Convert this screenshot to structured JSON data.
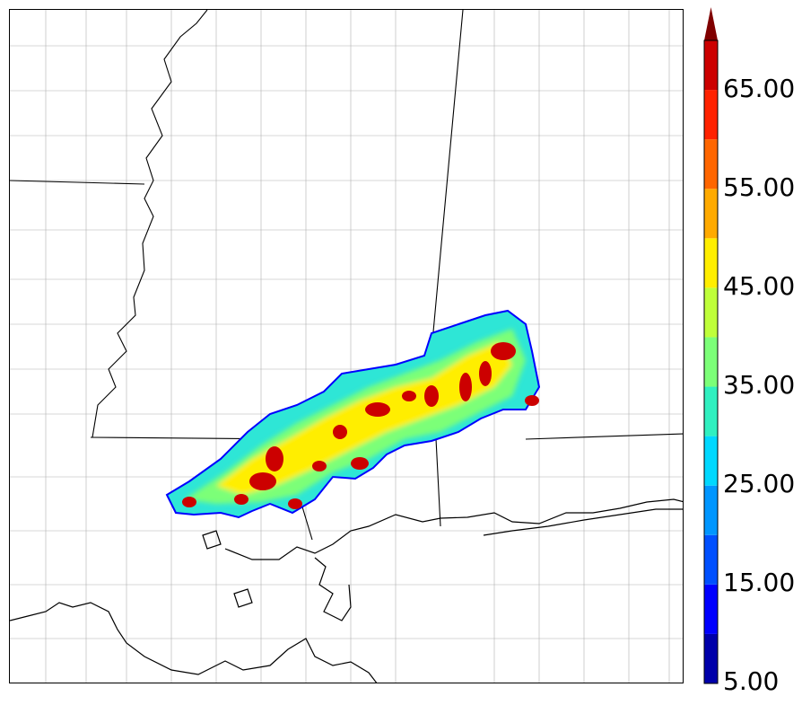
{
  "colorbar": {
    "tick_labels": [
      "5.00",
      "15.00",
      "25.00",
      "35.00",
      "45.00",
      "55.00",
      "65.00"
    ],
    "bins": [
      {
        "from": 5,
        "to": 10,
        "color": "#0000aa"
      },
      {
        "from": 10,
        "to": 15,
        "color": "#0000ff"
      },
      {
        "from": 15,
        "to": 20,
        "color": "#0050ff"
      },
      {
        "from": 20,
        "to": 25,
        "color": "#0096ff"
      },
      {
        "from": 25,
        "to": 30,
        "color": "#00d8ff"
      },
      {
        "from": 30,
        "to": 35,
        "color": "#30f0c0"
      },
      {
        "from": 35,
        "to": 40,
        "color": "#7cff78"
      },
      {
        "from": 40,
        "to": 45,
        "color": "#bfff3a"
      },
      {
        "from": 45,
        "to": 50,
        "color": "#ffee00"
      },
      {
        "from": 50,
        "to": 55,
        "color": "#ffaa00"
      },
      {
        "from": 55,
        "to": 60,
        "color": "#ff6600"
      },
      {
        "from": 60,
        "to": 65,
        "color": "#ff2200"
      },
      {
        "from": 65,
        "to": 70,
        "color": "#cc0000"
      }
    ],
    "extend_color": "#800000",
    "extend": "max"
  },
  "colors": {
    "state_border": "#000000",
    "county_border": "#999999",
    "coastline": "#000000",
    "storm_outline": "#0000ff"
  }
}
